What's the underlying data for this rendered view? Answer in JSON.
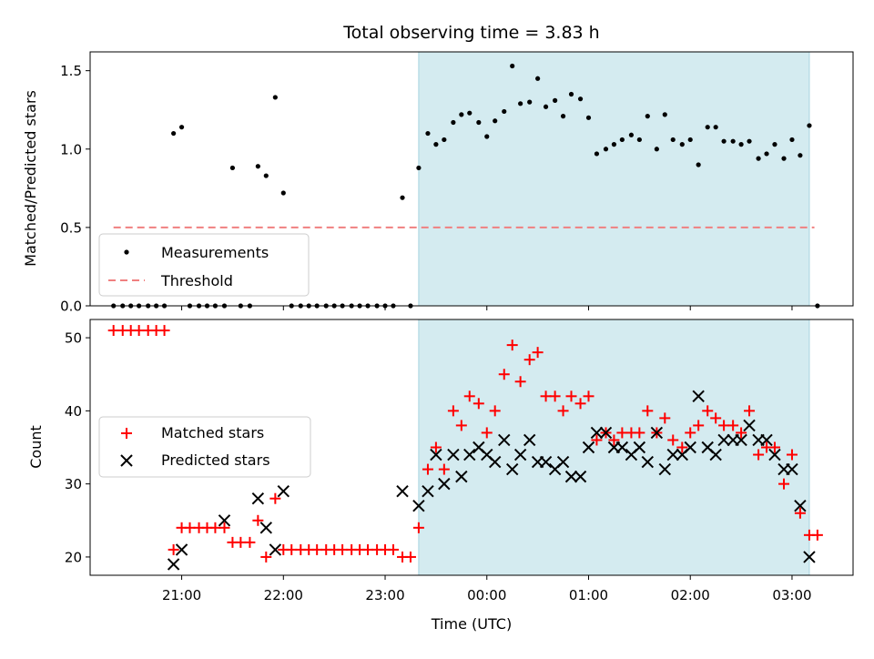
{
  "chart_data": [
    {
      "type": "scatter",
      "title": "Total observing time = 3.83 h",
      "xlabel": "",
      "ylabel": "Matched/Predicted stars",
      "xlim": [
        20.1,
        27.6
      ],
      "ylim": [
        0,
        1.62
      ],
      "yticks": [
        "0.0",
        "0.5",
        "1.0",
        "1.5"
      ],
      "grid": false,
      "legend_position": "lower-left",
      "shaded_interval": [
        23.33,
        27.17
      ],
      "shade_color": "#d4ebf0",
      "series": [
        {
          "name": "Measurements",
          "marker": "dot",
          "color": "#000000",
          "points": [
            [
              20.33,
              0
            ],
            [
              20.42,
              0
            ],
            [
              20.5,
              0
            ],
            [
              20.58,
              0
            ],
            [
              20.67,
              0
            ],
            [
              20.75,
              0
            ],
            [
              20.83,
              0
            ],
            [
              20.92,
              1.1
            ],
            [
              21.0,
              1.14
            ],
            [
              21.08,
              0
            ],
            [
              21.17,
              0
            ],
            [
              21.25,
              0
            ],
            [
              21.33,
              0
            ],
            [
              21.42,
              0
            ],
            [
              21.5,
              0.88
            ],
            [
              21.58,
              0
            ],
            [
              21.67,
              0
            ],
            [
              21.75,
              0.89
            ],
            [
              21.83,
              0.83
            ],
            [
              21.92,
              1.33
            ],
            [
              22.0,
              0.72
            ],
            [
              22.08,
              0
            ],
            [
              22.17,
              0
            ],
            [
              22.25,
              0
            ],
            [
              22.33,
              0
            ],
            [
              22.42,
              0
            ],
            [
              22.5,
              0
            ],
            [
              22.58,
              0
            ],
            [
              22.67,
              0
            ],
            [
              22.75,
              0
            ],
            [
              22.83,
              0
            ],
            [
              22.92,
              0
            ],
            [
              23.0,
              0
            ],
            [
              23.08,
              0
            ],
            [
              23.17,
              0.69
            ],
            [
              23.25,
              0
            ],
            [
              23.33,
              0.88
            ],
            [
              23.42,
              1.1
            ],
            [
              23.5,
              1.03
            ],
            [
              23.58,
              1.06
            ],
            [
              23.67,
              1.17
            ],
            [
              23.75,
              1.22
            ],
            [
              23.83,
              1.23
            ],
            [
              23.92,
              1.17
            ],
            [
              24.0,
              1.08
            ],
            [
              24.08,
              1.18
            ],
            [
              24.17,
              1.24
            ],
            [
              24.25,
              1.53
            ],
            [
              24.33,
              1.29
            ],
            [
              24.42,
              1.3
            ],
            [
              24.5,
              1.45
            ],
            [
              24.58,
              1.27
            ],
            [
              24.67,
              1.31
            ],
            [
              24.75,
              1.21
            ],
            [
              24.83,
              1.35
            ],
            [
              24.92,
              1.32
            ],
            [
              25.0,
              1.2
            ],
            [
              25.08,
              0.97
            ],
            [
              25.17,
              1.0
            ],
            [
              25.25,
              1.03
            ],
            [
              25.33,
              1.06
            ],
            [
              25.42,
              1.09
            ],
            [
              25.5,
              1.06
            ],
            [
              25.58,
              1.21
            ],
            [
              25.67,
              1.0
            ],
            [
              25.75,
              1.22
            ],
            [
              25.83,
              1.06
            ],
            [
              25.92,
              1.03
            ],
            [
              26.0,
              1.06
            ],
            [
              26.08,
              0.9
            ],
            [
              26.17,
              1.14
            ],
            [
              26.25,
              1.14
            ],
            [
              26.33,
              1.05
            ],
            [
              26.42,
              1.05
            ],
            [
              26.5,
              1.03
            ],
            [
              26.58,
              1.05
            ],
            [
              26.67,
              0.94
            ],
            [
              26.75,
              0.97
            ],
            [
              26.83,
              1.03
            ],
            [
              26.92,
              0.94
            ],
            [
              27.0,
              1.06
            ],
            [
              27.08,
              0.96
            ],
            [
              27.17,
              1.15
            ],
            [
              27.25,
              0
            ]
          ]
        },
        {
          "name": "Threshold",
          "marker": "dashed-line",
          "color": "#f08080",
          "points": [
            [
              20.33,
              0.5
            ],
            [
              27.22,
              0.5
            ]
          ]
        }
      ]
    },
    {
      "type": "scatter",
      "title": "",
      "xlabel": "Time (UTC)",
      "ylabel": "Count",
      "xlim": [
        20.1,
        27.6
      ],
      "ylim": [
        17.5,
        52.5
      ],
      "yticks": [
        "20",
        "30",
        "40",
        "50"
      ],
      "xticks": [
        {
          "value": 21,
          "label": "21:00"
        },
        {
          "value": 22,
          "label": "22:00"
        },
        {
          "value": 23,
          "label": "23:00"
        },
        {
          "value": 24,
          "label": "00:00"
        },
        {
          "value": 25,
          "label": "01:00"
        },
        {
          "value": 26,
          "label": "02:00"
        },
        {
          "value": 27,
          "label": "03:00"
        }
      ],
      "grid": false,
      "legend_position": "center-left",
      "shaded_interval": [
        23.33,
        27.17
      ],
      "shade_color": "#d4ebf0",
      "series": [
        {
          "name": "Matched stars",
          "marker": "plus",
          "color": "#ff0000",
          "points": [
            [
              20.33,
              51
            ],
            [
              20.42,
              51
            ],
            [
              20.5,
              51
            ],
            [
              20.58,
              51
            ],
            [
              20.67,
              51
            ],
            [
              20.75,
              51
            ],
            [
              20.83,
              51
            ],
            [
              20.92,
              21
            ],
            [
              21.0,
              24
            ],
            [
              21.08,
              24
            ],
            [
              21.17,
              24
            ],
            [
              21.25,
              24
            ],
            [
              21.33,
              24
            ],
            [
              21.42,
              24
            ],
            [
              21.5,
              22
            ],
            [
              21.58,
              22
            ],
            [
              21.67,
              22
            ],
            [
              21.75,
              25
            ],
            [
              21.83,
              20
            ],
            [
              21.92,
              28
            ],
            [
              22.0,
              21
            ],
            [
              22.08,
              21
            ],
            [
              22.17,
              21
            ],
            [
              22.25,
              21
            ],
            [
              22.33,
              21
            ],
            [
              22.42,
              21
            ],
            [
              22.5,
              21
            ],
            [
              22.58,
              21
            ],
            [
              22.67,
              21
            ],
            [
              22.75,
              21
            ],
            [
              22.83,
              21
            ],
            [
              22.92,
              21
            ],
            [
              23.0,
              21
            ],
            [
              23.08,
              21
            ],
            [
              23.17,
              20
            ],
            [
              23.25,
              20
            ],
            [
              23.33,
              24
            ],
            [
              23.42,
              32
            ],
            [
              23.5,
              35
            ],
            [
              23.58,
              32
            ],
            [
              23.67,
              40
            ],
            [
              23.75,
              38
            ],
            [
              23.83,
              42
            ],
            [
              23.92,
              41
            ],
            [
              24.0,
              37
            ],
            [
              24.08,
              40
            ],
            [
              24.17,
              45
            ],
            [
              24.25,
              49
            ],
            [
              24.33,
              44
            ],
            [
              24.42,
              47
            ],
            [
              24.5,
              48
            ],
            [
              24.58,
              42
            ],
            [
              24.67,
              42
            ],
            [
              24.75,
              40
            ],
            [
              24.83,
              42
            ],
            [
              24.92,
              41
            ],
            [
              25.0,
              42
            ],
            [
              25.08,
              36
            ],
            [
              25.17,
              37
            ],
            [
              25.25,
              36
            ],
            [
              25.33,
              37
            ],
            [
              25.42,
              37
            ],
            [
              25.5,
              37
            ],
            [
              25.58,
              40
            ],
            [
              25.67,
              37
            ],
            [
              25.75,
              39
            ],
            [
              25.83,
              36
            ],
            [
              25.92,
              35
            ],
            [
              26.0,
              37
            ],
            [
              26.08,
              38
            ],
            [
              26.17,
              40
            ],
            [
              26.25,
              39
            ],
            [
              26.33,
              38
            ],
            [
              26.42,
              38
            ],
            [
              26.5,
              37
            ],
            [
              26.58,
              40
            ],
            [
              26.67,
              34
            ],
            [
              26.75,
              35
            ],
            [
              26.83,
              35
            ],
            [
              26.92,
              30
            ],
            [
              27.0,
              34
            ],
            [
              27.08,
              26
            ],
            [
              27.17,
              23
            ],
            [
              27.25,
              23
            ]
          ]
        },
        {
          "name": "Predicted stars",
          "marker": "x",
          "color": "#000000",
          "points": [
            [
              20.92,
              19
            ],
            [
              21.0,
              21
            ],
            [
              21.42,
              25
            ],
            [
              21.75,
              28
            ],
            [
              21.83,
              24
            ],
            [
              21.92,
              21
            ],
            [
              22.0,
              29
            ],
            [
              23.17,
              29
            ],
            [
              23.33,
              27
            ],
            [
              23.42,
              29
            ],
            [
              23.5,
              34
            ],
            [
              23.58,
              30
            ],
            [
              23.67,
              34
            ],
            [
              23.75,
              31
            ],
            [
              23.83,
              34
            ],
            [
              23.92,
              35
            ],
            [
              24.0,
              34
            ],
            [
              24.08,
              33
            ],
            [
              24.17,
              36
            ],
            [
              24.25,
              32
            ],
            [
              24.33,
              34
            ],
            [
              24.42,
              36
            ],
            [
              24.5,
              33
            ],
            [
              24.58,
              33
            ],
            [
              24.67,
              32
            ],
            [
              24.75,
              33
            ],
            [
              24.83,
              31
            ],
            [
              24.92,
              31
            ],
            [
              25.0,
              35
            ],
            [
              25.08,
              37
            ],
            [
              25.17,
              37
            ],
            [
              25.25,
              35
            ],
            [
              25.33,
              35
            ],
            [
              25.42,
              34
            ],
            [
              25.5,
              35
            ],
            [
              25.58,
              33
            ],
            [
              25.67,
              37
            ],
            [
              25.75,
              32
            ],
            [
              25.83,
              34
            ],
            [
              25.92,
              34
            ],
            [
              26.0,
              35
            ],
            [
              26.08,
              42
            ],
            [
              26.17,
              35
            ],
            [
              26.25,
              34
            ],
            [
              26.33,
              36
            ],
            [
              26.42,
              36
            ],
            [
              26.5,
              36
            ],
            [
              26.58,
              38
            ],
            [
              26.67,
              36
            ],
            [
              26.75,
              36
            ],
            [
              26.83,
              34
            ],
            [
              26.92,
              32
            ],
            [
              27.0,
              32
            ],
            [
              27.08,
              27
            ],
            [
              27.17,
              20
            ]
          ]
        }
      ]
    }
  ]
}
